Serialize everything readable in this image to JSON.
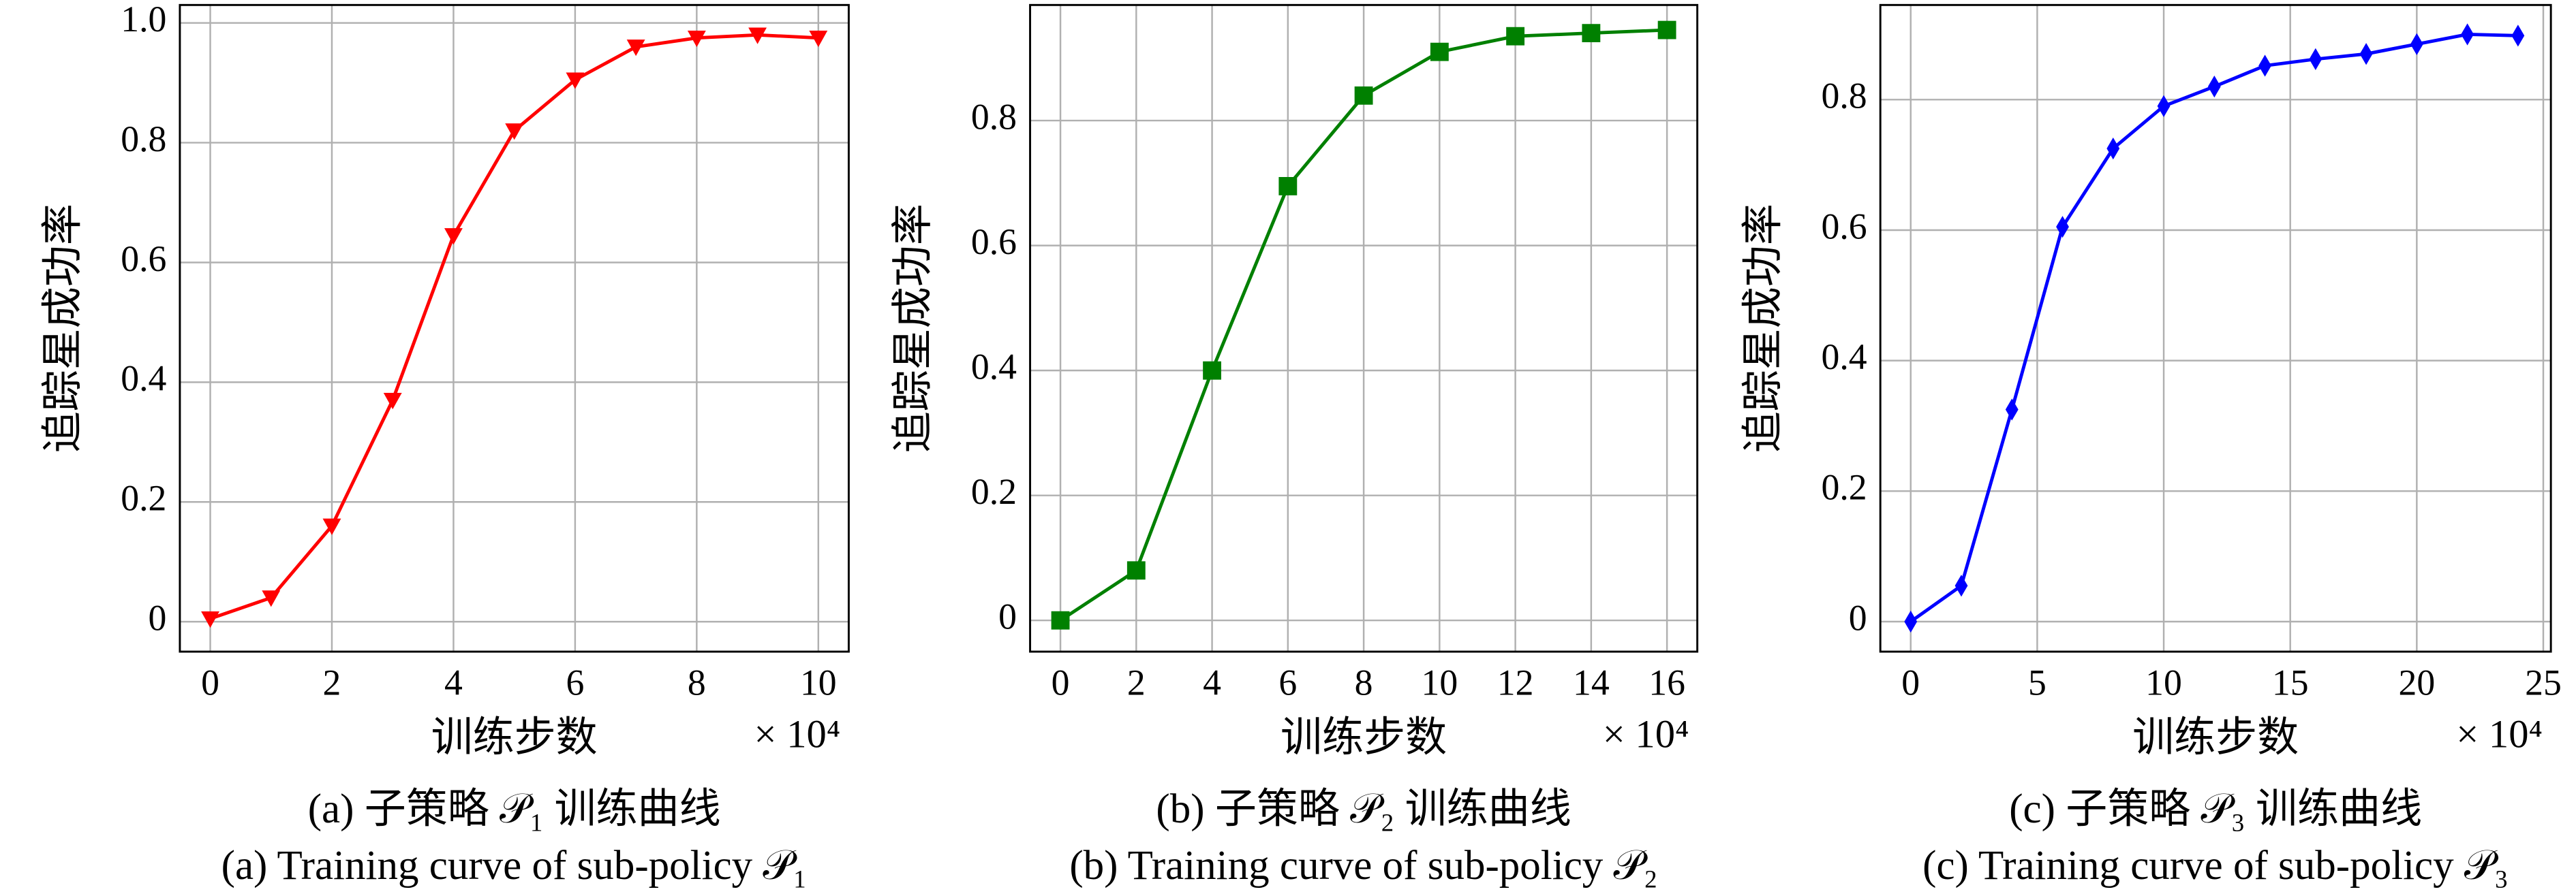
{
  "chart_data": [
    {
      "type": "line",
      "caption_cn": "(a) 子策略 𝒫₁ 训练曲线",
      "caption_en": "(a) Training curve of sub-policy 𝒫₁",
      "xlabel": "训练步数",
      "x_scale_label": "× 10⁴",
      "ylabel": "追踪星成功率",
      "x": [
        0,
        1,
        2,
        3,
        4,
        5,
        6,
        7,
        8,
        9,
        10
      ],
      "series": [
        {
          "name": "sub-policy 𝒫₁",
          "color": "#ff0000",
          "marker": "triangle-down",
          "values": [
            0.005,
            0.04,
            0.16,
            0.37,
            0.645,
            0.82,
            0.905,
            0.96,
            0.975,
            0.98,
            0.975
          ]
        }
      ],
      "xlim": [
        -0.5,
        10.5
      ],
      "ylim": [
        -0.05,
        1.03
      ],
      "xticks": [
        0,
        2,
        4,
        6,
        8,
        10
      ],
      "yticks": [
        0,
        0.2,
        0.4,
        0.6,
        0.8,
        {
          "value": 1.0,
          "label": "1.0"
        }
      ],
      "grid": true
    },
    {
      "type": "line",
      "caption_cn": "(b) 子策略 𝒫₂ 训练曲线",
      "caption_en": "(b) Training curve of sub-policy 𝒫₂",
      "xlabel": "训练步数",
      "x_scale_label": "× 10⁴",
      "ylabel": "追踪星成功率",
      "x": [
        0,
        2,
        4,
        6,
        8,
        10,
        12,
        14,
        16
      ],
      "series": [
        {
          "name": "sub-policy 𝒫₂",
          "color": "#008000",
          "marker": "square",
          "values": [
            0,
            0.08,
            0.4,
            0.695,
            0.84,
            0.91,
            0.935,
            0.94,
            0.945
          ]
        }
      ],
      "xlim": [
        -0.8,
        16.8
      ],
      "ylim": [
        -0.05,
        0.985
      ],
      "xticks": [
        0,
        2,
        4,
        6,
        8,
        10,
        12,
        14,
        16
      ],
      "yticks": [
        0,
        0.2,
        0.4,
        0.6,
        0.8
      ],
      "grid": true
    },
    {
      "type": "line",
      "caption_cn": "(c) 子策略 𝒫₃ 训练曲线",
      "caption_en": "(c) Training curve of sub-policy 𝒫₃",
      "xlabel": "训练步数",
      "x_scale_label": "× 10⁴",
      "ylabel": "追踪星成功率",
      "x": [
        0,
        2,
        4,
        6,
        8,
        10,
        12,
        14,
        16,
        18,
        20,
        22,
        24
      ],
      "series": [
        {
          "name": "sub-policy 𝒫₃",
          "color": "#0000ff",
          "marker": "diamond",
          "values": [
            0,
            0.055,
            0.325,
            0.605,
            0.725,
            0.79,
            0.82,
            0.852,
            0.862,
            0.87,
            0.885,
            0.9,
            0.898
          ]
        }
      ],
      "xlim": [
        -1.2,
        25.3
      ],
      "ylim": [
        -0.046,
        0.945
      ],
      "xticks": [
        0,
        5,
        10,
        15,
        20,
        25
      ],
      "yticks": [
        0,
        0.2,
        0.4,
        0.6,
        0.8
      ],
      "grid": true
    }
  ]
}
